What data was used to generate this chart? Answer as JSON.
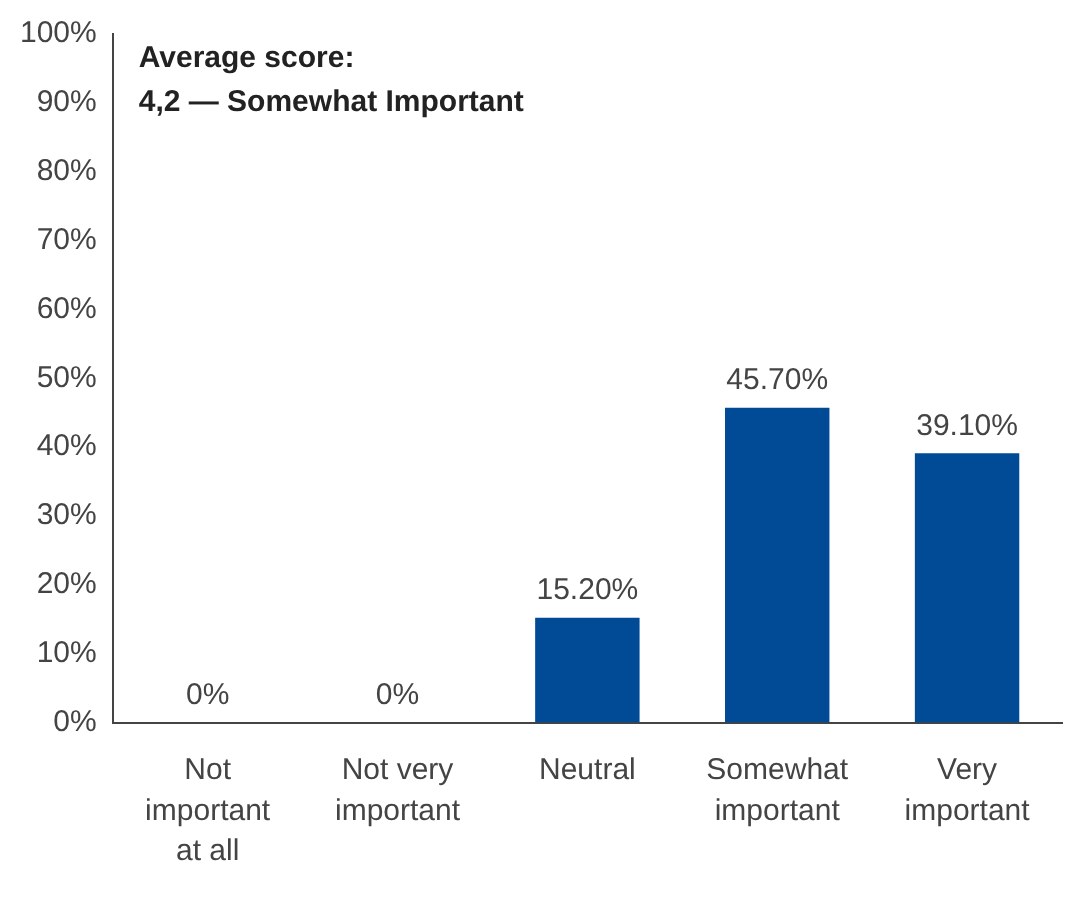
{
  "chart_data": {
    "type": "bar",
    "categories": [
      "Not important at all",
      "Not very important",
      "Neutral",
      "Somewhat important",
      "Very important"
    ],
    "values": [
      0,
      0,
      15.2,
      45.7,
      39.1
    ],
    "value_labels": [
      "0%",
      "0%",
      "15.20%",
      "45.70%",
      "39.10%"
    ],
    "color": "#004a96",
    "ylim": [
      0,
      100
    ],
    "yticks": [
      {
        "value": 0,
        "label": "0%"
      },
      {
        "value": 10,
        "label": "10%"
      },
      {
        "value": 20,
        "label": "20%"
      },
      {
        "value": 30,
        "label": "30%"
      },
      {
        "value": 40,
        "label": "40%"
      },
      {
        "value": 50,
        "label": "50%"
      },
      {
        "value": 60,
        "label": "60%"
      },
      {
        "value": 70,
        "label": "70%"
      },
      {
        "value": 80,
        "label": "80%"
      },
      {
        "value": 90,
        "label": "90%"
      },
      {
        "value": 100,
        "label": "100%"
      }
    ],
    "annotations": [
      "Average score:",
      "4,2 — Somewhat Important"
    ],
    "grid": false,
    "legend": false
  }
}
